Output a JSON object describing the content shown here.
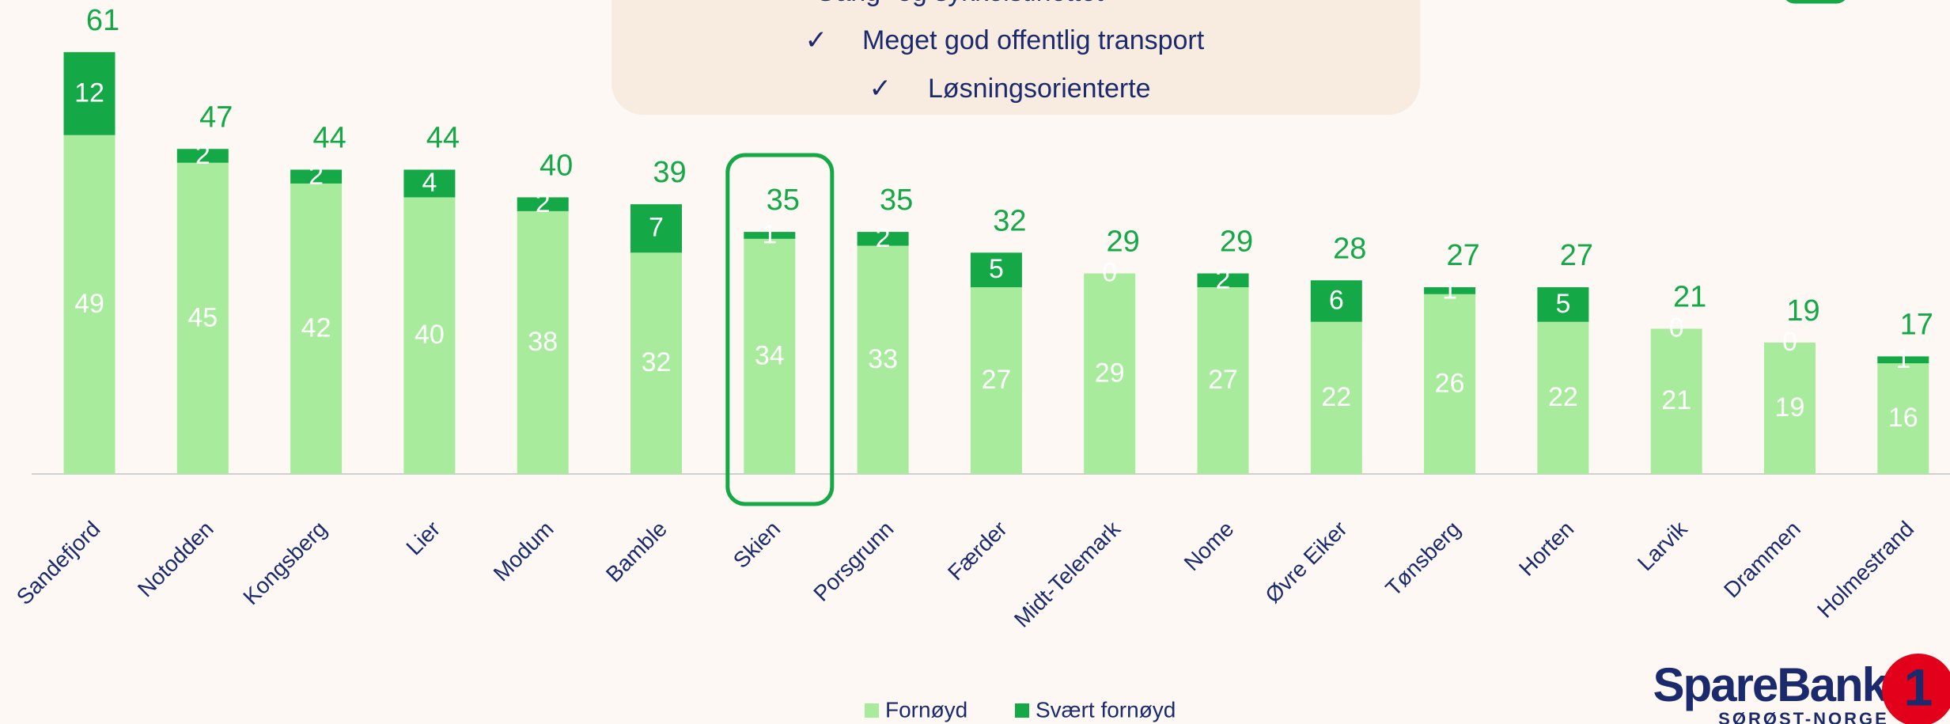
{
  "chart_data": {
    "type": "stacked_bar",
    "categories": [
      "Sandefjord",
      "Notodden",
      "Kongsberg",
      "Lier",
      "Modum",
      "Bamble",
      "Skien",
      "Porsgrunn",
      "Færder",
      "Midt-Telemark",
      "Nome",
      "Øvre Eiker",
      "Tønsberg",
      "Horten",
      "Larvik",
      "Drammen",
      "Holmestrand"
    ],
    "series": [
      {
        "name": "Fornøyd",
        "color": "#a8eb9c",
        "values": [
          49,
          45,
          42,
          40,
          38,
          32,
          34,
          33,
          27,
          29,
          27,
          22,
          26,
          22,
          21,
          19,
          16
        ]
      },
      {
        "name": "Svært fornøyd",
        "color": "#14a846",
        "values": [
          12,
          2,
          2,
          4,
          2,
          7,
          1,
          2,
          5,
          0,
          2,
          6,
          1,
          5,
          0,
          0,
          1
        ]
      }
    ],
    "totals": [
      61,
      47,
      44,
      44,
      40,
      39,
      35,
      35,
      32,
      29,
      29,
      28,
      27,
      27,
      21,
      19,
      17
    ],
    "ylim": [
      0,
      65
    ],
    "highlight": "Skien",
    "callout": {
      "lines": [
        "Gang- og sykkelstinettet",
        "Meget god offentlig transport",
        "Løsningsorienterte"
      ],
      "mark": "✓"
    }
  },
  "logo": {
    "name": "SpareBank",
    "number": "1",
    "region": "SØRØST-NORGE"
  }
}
